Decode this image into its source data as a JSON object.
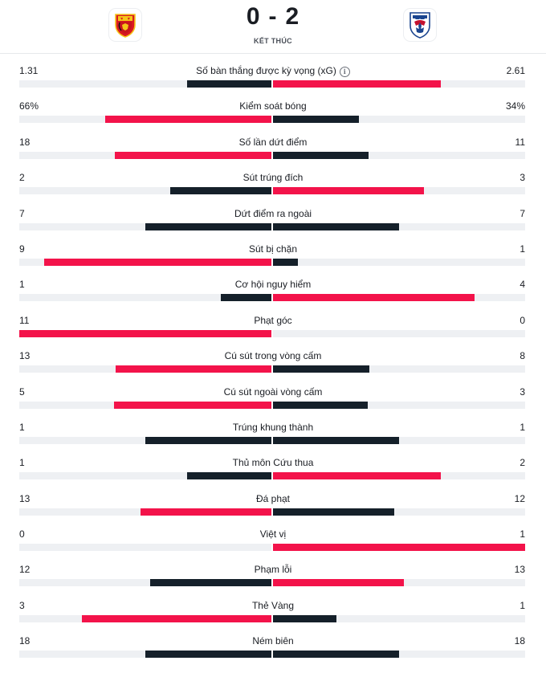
{
  "match": {
    "home_score": "0",
    "away_score": "2",
    "separator": "-",
    "status": "KẾT THÚC",
    "home_logo": "manchester-united-crest",
    "away_logo": "crystal-palace-crest"
  },
  "colors": {
    "leading": "#f3134a",
    "trailing": "#15202a",
    "track": "#eef0f3"
  },
  "stats": [
    {
      "label": "Số bàn thắng được kỳ vọng (xG)",
      "home": "1.31",
      "away": "2.61",
      "home_share": 0.334,
      "away_share": 0.666,
      "info": "i"
    },
    {
      "label": "Kiểm soát bóng",
      "home": "66%",
      "away": "34%",
      "home_share": 0.66,
      "away_share": 0.34
    },
    {
      "label": "Số lần dứt điểm",
      "home": "18",
      "away": "11",
      "home_share": 0.621,
      "away_share": 0.379
    },
    {
      "label": "Sút trúng đích",
      "home": "2",
      "away": "3",
      "home_share": 0.4,
      "away_share": 0.6
    },
    {
      "label": "Dứt điểm ra ngoài",
      "home": "7",
      "away": "7",
      "home_share": 0.5,
      "away_share": 0.5
    },
    {
      "label": "Sút bị chặn",
      "home": "9",
      "away": "1",
      "home_share": 0.9,
      "away_share": 0.1
    },
    {
      "label": "Cơ hội nguy hiểm",
      "home": "1",
      "away": "4",
      "home_share": 0.2,
      "away_share": 0.8
    },
    {
      "label": "Phạt góc",
      "home": "11",
      "away": "0",
      "home_share": 1.0,
      "away_share": 0.0
    },
    {
      "label": "Cú sút trong vòng cấm",
      "home": "13",
      "away": "8",
      "home_share": 0.619,
      "away_share": 0.381
    },
    {
      "label": "Cú sút ngoài vòng cấm",
      "home": "5",
      "away": "3",
      "home_share": 0.625,
      "away_share": 0.375
    },
    {
      "label": "Trúng khung thành",
      "home": "1",
      "away": "1",
      "home_share": 0.5,
      "away_share": 0.5
    },
    {
      "label": "Thủ môn Cứu thua",
      "home": "1",
      "away": "2",
      "home_share": 0.333,
      "away_share": 0.667
    },
    {
      "label": "Đá phạt",
      "home": "13",
      "away": "12",
      "home_share": 0.52,
      "away_share": 0.48
    },
    {
      "label": "Việt vị",
      "home": "0",
      "away": "1",
      "home_share": 0.0,
      "away_share": 1.0
    },
    {
      "label": "Phạm lỗi",
      "home": "12",
      "away": "13",
      "home_share": 0.48,
      "away_share": 0.52
    },
    {
      "label": "Thẻ Vàng",
      "home": "3",
      "away": "1",
      "home_share": 0.75,
      "away_share": 0.25
    },
    {
      "label": "Ném biên",
      "home": "18",
      "away": "18",
      "home_share": 0.5,
      "away_share": 0.5
    }
  ]
}
